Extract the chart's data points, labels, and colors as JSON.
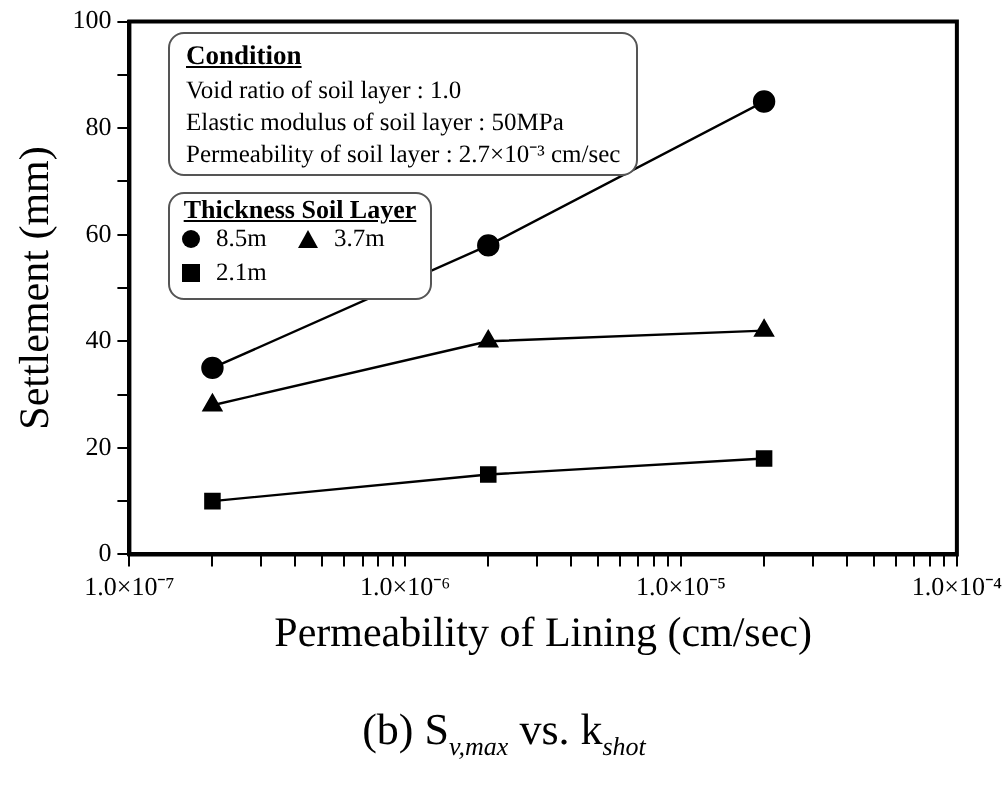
{
  "chart_data": {
    "type": "line",
    "title": "(b)  S$_{v,max}$  vs.  k$_{shot}$",
    "xlabel": "Permeability of Lining (cm/sec)",
    "ylabel": "Settlement (mm)",
    "legend_title": "Thickness Soil Layer",
    "annotations": [
      "Condition",
      "Void ratio of soil layer : 1.0",
      "Elastic modulus of soil layer : 50MPa",
      "Permeability of soil layer : 2.7×10⁻³ cm/sec"
    ],
    "x": [
      2e-07,
      2e-06,
      2e-05
    ],
    "series": [
      {
        "name": "8.5m",
        "color": "#000000",
        "marker": "circle",
        "values": [
          35,
          58,
          85
        ]
      },
      {
        "name": "3.7m",
        "color": "#000000",
        "marker": "triangle",
        "values": [
          28,
          40,
          42
        ]
      },
      {
        "name": "2.1m",
        "color": "#000000",
        "marker": "square",
        "values": [
          10,
          15,
          18
        ]
      }
    ],
    "log": "x",
    "xlim": [
      1e-07,
      0.0001
    ],
    "xticks": [
      {
        "value": 1e-07,
        "label": "1.0×10⁻⁷"
      },
      {
        "value": 2e-07,
        "label": null
      },
      {
        "value": 3e-07,
        "label": null
      },
      {
        "value": 4e-07,
        "label": null
      },
      {
        "value": 5e-07,
        "label": null
      },
      {
        "value": 6e-07,
        "label": null
      },
      {
        "value": 7e-07,
        "label": null
      },
      {
        "value": 8e-07,
        "label": null
      },
      {
        "value": 9e-07,
        "label": null
      },
      {
        "value": 1e-06,
        "label": "1.0×10⁻⁶"
      },
      {
        "value": 2e-06,
        "label": null
      },
      {
        "value": 3e-06,
        "label": null
      },
      {
        "value": 4e-06,
        "label": null
      },
      {
        "value": 5e-06,
        "label": null
      },
      {
        "value": 6e-06,
        "label": null
      },
      {
        "value": 7e-06,
        "label": null
      },
      {
        "value": 8e-06,
        "label": null
      },
      {
        "value": 9e-06,
        "label": null
      },
      {
        "value": 1e-05,
        "label": "1.0×10⁻⁵"
      },
      {
        "value": 2e-05,
        "label": null
      },
      {
        "value": 3e-05,
        "label": null
      },
      {
        "value": 4e-05,
        "label": null
      },
      {
        "value": 5e-05,
        "label": null
      },
      {
        "value": 6e-05,
        "label": null
      },
      {
        "value": 7e-05,
        "label": null
      },
      {
        "value": 8e-05,
        "label": null
      },
      {
        "value": 9e-05,
        "label": null
      },
      {
        "value": 0.0001,
        "label": "1.0×10⁻⁴"
      }
    ],
    "ylim": [
      0,
      100
    ],
    "yticks": [
      0,
      {
        "value": 10,
        "label": null
      },
      20,
      {
        "value": 30,
        "label": null
      },
      40,
      {
        "value": 50,
        "label": null
      },
      60,
      {
        "value": 70,
        "label": null
      },
      80,
      {
        "value": 90,
        "label": null
      },
      100
    ],
    "grid": false,
    "legend": "top left"
  }
}
